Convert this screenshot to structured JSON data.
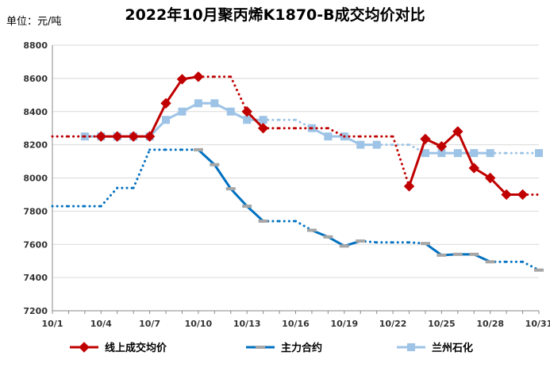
{
  "chart_data": {
    "type": "line",
    "title": "2022年10月聚丙烯K1870-B成交均价对比",
    "unit": "单位：元/吨",
    "ylim": [
      7200,
      8800
    ],
    "y_ticks": [
      7200,
      7400,
      7600,
      7800,
      8000,
      8200,
      8400,
      8600,
      8800
    ],
    "x_tick_labels": [
      "10/1",
      "10/4",
      "10/7",
      "10/10",
      "10/13",
      "10/16",
      "10/19",
      "10/22",
      "10/25",
      "10/28",
      "10/31"
    ],
    "grid": "horizontal",
    "legend_position": "bottom",
    "x": [
      1,
      2,
      3,
      4,
      5,
      6,
      7,
      8,
      9,
      10,
      11,
      12,
      13,
      14,
      15,
      16,
      17,
      18,
      19,
      20,
      21,
      22,
      23,
      24,
      25,
      26,
      27,
      28,
      29,
      30,
      31
    ],
    "series": [
      {
        "name": "线上成交均价",
        "color": "#c00000",
        "marker": "diamond",
        "values": [
          8250,
          8250,
          8250,
          8250,
          8250,
          8250,
          8250,
          8450,
          8595,
          8610,
          8610,
          8610,
          8400,
          8300,
          8300,
          8300,
          8300,
          8300,
          8250,
          8250,
          8250,
          8250,
          7950,
          8235,
          8190,
          8280,
          8060,
          8000,
          7900,
          7900,
          7900
        ],
        "measured": [
          false,
          false,
          false,
          true,
          true,
          true,
          true,
          true,
          true,
          true,
          false,
          false,
          true,
          true,
          false,
          false,
          false,
          false,
          false,
          false,
          false,
          false,
          true,
          true,
          true,
          true,
          true,
          true,
          true,
          true,
          false
        ]
      },
      {
        "name": "主力合约",
        "color": "#0070c0",
        "marker": "dash",
        "values": [
          7830,
          7830,
          7830,
          7830,
          7940,
          7940,
          8170,
          8170,
          8170,
          8170,
          8080,
          7935,
          7830,
          7740,
          7740,
          7740,
          7685,
          7645,
          7590,
          7620,
          7612,
          7612,
          7612,
          7605,
          7535,
          7540,
          7540,
          7495,
          7495,
          7495,
          7445
        ],
        "measured": [
          false,
          false,
          false,
          false,
          false,
          false,
          false,
          false,
          false,
          true,
          true,
          true,
          true,
          true,
          false,
          false,
          true,
          true,
          true,
          true,
          false,
          false,
          false,
          true,
          true,
          true,
          true,
          true,
          false,
          false,
          true
        ]
      },
      {
        "name": "兰州石化",
        "color": "#9dc3e6",
        "marker": "square",
        "values": [
          8250,
          8250,
          8250,
          8250,
          8250,
          8250,
          8250,
          8350,
          8400,
          8450,
          8450,
          8400,
          8350,
          8350,
          8350,
          8350,
          8300,
          8250,
          8250,
          8200,
          8200,
          8200,
          8200,
          8150,
          8150,
          8150,
          8150,
          8150,
          8150,
          8150,
          8150
        ],
        "measured": [
          false,
          false,
          true,
          true,
          true,
          true,
          true,
          true,
          true,
          true,
          true,
          true,
          true,
          true,
          false,
          false,
          true,
          true,
          true,
          true,
          true,
          false,
          false,
          true,
          true,
          true,
          true,
          true,
          false,
          false,
          true
        ]
      }
    ]
  }
}
